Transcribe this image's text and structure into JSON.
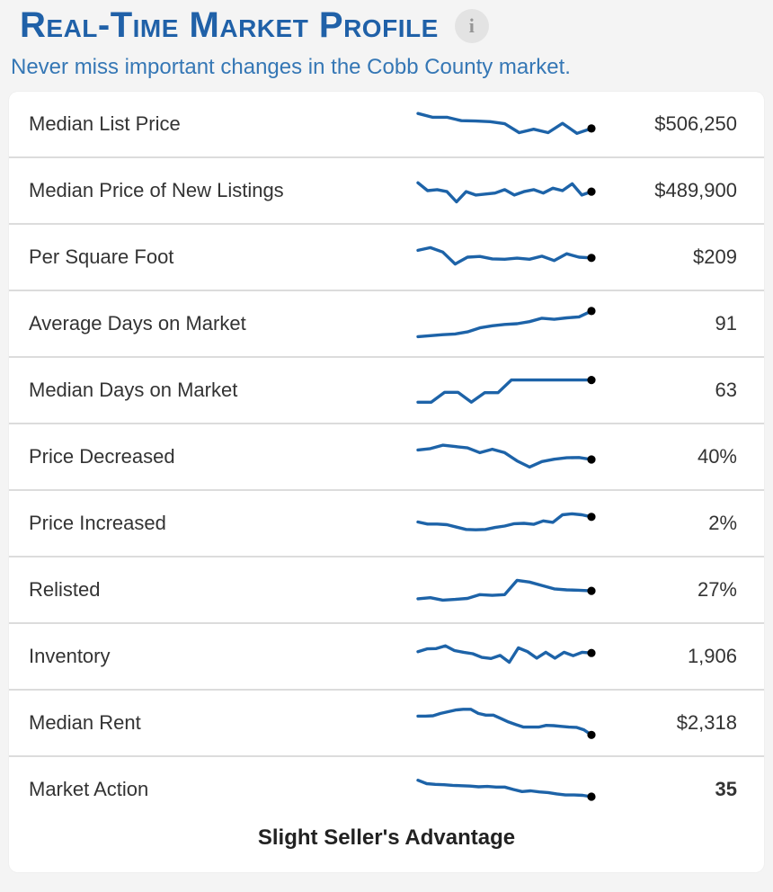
{
  "header": {
    "title": "Real-Time Market Profile",
    "info_icon": "i",
    "subtitle": "Never miss important changes in the Cobb County market."
  },
  "colors": {
    "title_blue": "#2061a8",
    "subtitle_blue": "#3577b5",
    "sparkline_blue": "#1d63a8",
    "endpoint_dot": "#000000",
    "label_text": "#333333",
    "row_divider": "#dcdcdc",
    "page_background": "#f4f4f4",
    "card_background": "#ffffff"
  },
  "chart_data": {
    "type": "line",
    "note": "Each row holds a 13-week sparkline trend; values below are normalized shape points (0 = top of sparkline, 100 = bottom), ending at the latest value marked with a black dot."
  },
  "rows": [
    {
      "label": "Median List Price",
      "value": "$506,250",
      "spark": [
        19,
        30,
        30,
        40,
        41,
        43,
        49,
        75,
        65,
        75,
        48,
        77,
        63
      ]
    },
    {
      "label": "Median Price of New Listings",
      "value": "$489,900",
      "spark": [
        27,
        50,
        47,
        53,
        83,
        53,
        63,
        60,
        57,
        47,
        63,
        53,
        47,
        57,
        43,
        50,
        30,
        63,
        53
      ]
    },
    {
      "label": "Per Square Foot",
      "value": "$209",
      "spark": [
        30,
        22,
        35,
        70,
        50,
        48,
        55,
        56,
        53,
        56,
        47,
        60,
        40,
        50,
        52
      ]
    },
    {
      "label": "Average Days on Market",
      "value": "91",
      "spark": [
        88,
        85,
        82,
        80,
        74,
        62,
        56,
        52,
        50,
        44,
        34,
        37,
        33,
        30,
        13
      ]
    },
    {
      "label": "Median Days on Market",
      "value": "63",
      "spark": [
        85,
        85,
        56,
        56,
        85,
        57,
        57,
        20,
        20,
        20,
        20,
        20,
        20,
        20
      ]
    },
    {
      "label": "Price Decreased",
      "value": "40%",
      "spark": [
        30,
        26,
        16,
        20,
        24,
        38,
        28,
        38,
        62,
        80,
        64,
        57,
        53,
        52,
        58
      ]
    },
    {
      "label": "Price Increased",
      "value": "2%",
      "spark": [
        46,
        52,
        52,
        54,
        61,
        68,
        69,
        68,
        62,
        58,
        51,
        50,
        53,
        43,
        47,
        25,
        22,
        25,
        31
      ]
    },
    {
      "label": "Relisted",
      "value": "27%",
      "spark": [
        76,
        73,
        80,
        78,
        75,
        64,
        66,
        64,
        22,
        27,
        37,
        47,
        50,
        51,
        53
      ]
    },
    {
      "label": "Inventory",
      "value": "1,906",
      "spark": [
        36,
        28,
        27,
        19,
        33,
        38,
        42,
        53,
        56,
        47,
        67,
        25,
        36,
        55,
        38,
        55,
        38,
        48,
        38,
        40
      ]
    },
    {
      "label": "Median Rent",
      "value": "$2,318",
      "spark": [
        30,
        30,
        29,
        22,
        17,
        12,
        10,
        10,
        22,
        27,
        27,
        37,
        47,
        55,
        62,
        62,
        62,
        57,
        58,
        60,
        62,
        63,
        70,
        85
      ]
    },
    {
      "label": "Market Action",
      "value": "35",
      "spark": [
        23,
        33,
        35,
        36,
        38,
        39,
        40,
        42,
        41,
        43,
        43,
        50,
        56,
        54,
        57,
        59,
        63,
        66,
        66,
        67,
        71
      ],
      "caption": "Slight Seller's Advantage"
    }
  ]
}
